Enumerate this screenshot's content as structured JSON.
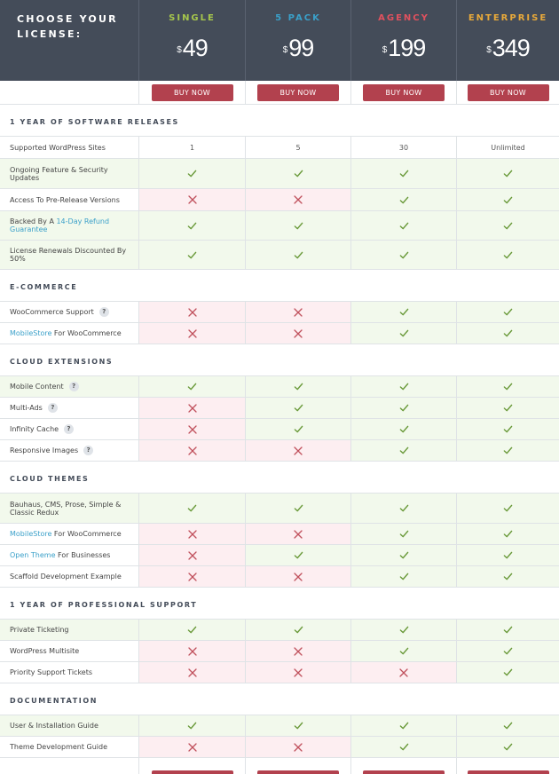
{
  "header": {
    "title": "Choose Your License:",
    "plans": [
      {
        "name": "SINGLE",
        "currency": "$",
        "price": "49",
        "color": "#a6c64c"
      },
      {
        "name": "5 PACK",
        "currency": "$",
        "price": "99",
        "color": "#3aa0c9"
      },
      {
        "name": "AGENCY",
        "currency": "$",
        "price": "199",
        "color": "#e0515e"
      },
      {
        "name": "ENTERPRISE",
        "currency": "$",
        "price": "349",
        "color": "#e8a93a"
      }
    ]
  },
  "buy_label": "BUY NOW",
  "colors": {
    "check": "#6a9a3a",
    "cross": "#c0505c",
    "yes_bg": "#f2f9ec",
    "no_bg": "#fdeef1",
    "link": "#3aa0c9"
  },
  "sections": [
    {
      "title": "1 Year Of Software Releases",
      "rows": [
        {
          "parts": [
            {
              "t": "Supported WordPress Sites"
            }
          ],
          "cells": [
            "1",
            "5",
            "30",
            "Unlimited"
          ]
        },
        {
          "parts": [
            {
              "t": "Ongoing Feature & Security Updates"
            }
          ],
          "cells": [
            "Y",
            "Y",
            "Y",
            "Y"
          ]
        },
        {
          "parts": [
            {
              "t": "Access To Pre-Release Versions"
            }
          ],
          "cells": [
            "N",
            "N",
            "Y",
            "Y"
          ]
        },
        {
          "parts": [
            {
              "t": "Backed By A "
            },
            {
              "t": "14-Day Refund Guarantee",
              "link": true
            }
          ],
          "cells": [
            "Y",
            "Y",
            "Y",
            "Y"
          ]
        },
        {
          "parts": [
            {
              "t": "License Renewals Discounted By 50%"
            }
          ],
          "cells": [
            "Y",
            "Y",
            "Y",
            "Y"
          ]
        }
      ]
    },
    {
      "title": "E-Commerce",
      "rows": [
        {
          "parts": [
            {
              "t": "WooCommerce Support"
            }
          ],
          "help": true,
          "cells": [
            "N",
            "N",
            "Y",
            "Y"
          ]
        },
        {
          "parts": [
            {
              "t": "MobileStore",
              "link": true
            },
            {
              "t": " For WooCommerce"
            }
          ],
          "cells": [
            "N",
            "N",
            "Y",
            "Y"
          ]
        }
      ]
    },
    {
      "title": "Cloud Extensions",
      "rows": [
        {
          "parts": [
            {
              "t": "Mobile Content"
            }
          ],
          "help": true,
          "cells": [
            "Y",
            "Y",
            "Y",
            "Y"
          ]
        },
        {
          "parts": [
            {
              "t": "Multi-Ads"
            }
          ],
          "help": true,
          "cells": [
            "N",
            "Y",
            "Y",
            "Y"
          ]
        },
        {
          "parts": [
            {
              "t": "Infinity Cache"
            }
          ],
          "help": true,
          "cells": [
            "N",
            "Y",
            "Y",
            "Y"
          ]
        },
        {
          "parts": [
            {
              "t": "Responsive Images"
            }
          ],
          "help": true,
          "cells": [
            "N",
            "N",
            "Y",
            "Y"
          ]
        }
      ]
    },
    {
      "title": "Cloud Themes",
      "rows": [
        {
          "parts": [
            {
              "t": "Bauhaus, CMS, Prose, Simple & Classic Redux"
            }
          ],
          "cells": [
            "Y",
            "Y",
            "Y",
            "Y"
          ]
        },
        {
          "parts": [
            {
              "t": "MobileStore",
              "link": true
            },
            {
              "t": " For WooCommerce"
            }
          ],
          "cells": [
            "N",
            "N",
            "Y",
            "Y"
          ]
        },
        {
          "parts": [
            {
              "t": "Open Theme",
              "link": true
            },
            {
              "t": " For Businesses"
            }
          ],
          "cells": [
            "N",
            "Y",
            "Y",
            "Y"
          ]
        },
        {
          "parts": [
            {
              "t": "Scaffold Development Example"
            }
          ],
          "cells": [
            "N",
            "N",
            "Y",
            "Y"
          ]
        }
      ]
    },
    {
      "title": "1 Year Of Professional Support",
      "rows": [
        {
          "parts": [
            {
              "t": "Private Ticketing"
            }
          ],
          "cells": [
            "Y",
            "Y",
            "Y",
            "Y"
          ]
        },
        {
          "parts": [
            {
              "t": "WordPress Multisite"
            }
          ],
          "cells": [
            "N",
            "N",
            "Y",
            "Y"
          ]
        },
        {
          "parts": [
            {
              "t": "Priority Support Tickets"
            }
          ],
          "cells": [
            "N",
            "N",
            "N",
            "Y"
          ]
        }
      ]
    },
    {
      "title": "Documentation",
      "rows": [
        {
          "parts": [
            {
              "t": "User & Installation Guide"
            }
          ],
          "cells": [
            "Y",
            "Y",
            "Y",
            "Y"
          ]
        },
        {
          "parts": [
            {
              "t": "Theme Development Guide"
            }
          ],
          "cells": [
            "N",
            "N",
            "Y",
            "Y"
          ]
        }
      ]
    }
  ]
}
